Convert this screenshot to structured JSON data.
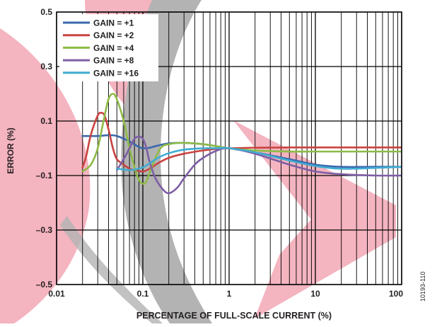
{
  "chart_data": {
    "type": "line",
    "xlabel": "PERCENTAGE OF FULL-SCALE CURRENT (%)",
    "ylabel": "ERROR (%)",
    "x_scale": "log",
    "xlim": [
      0.01,
      100
    ],
    "ylim": [
      -0.5,
      0.5
    ],
    "grid": true,
    "legend_position": "top-left",
    "x_ticks": [
      {
        "value": 0.01,
        "label": "0.01"
      },
      {
        "value": 0.1,
        "label": "0.1"
      },
      {
        "value": 1,
        "label": "1"
      },
      {
        "value": 10,
        "label": "10"
      },
      {
        "value": 100,
        "label": "100"
      }
    ],
    "y_ticks": [
      {
        "value": 0.5,
        "label": "0.5"
      },
      {
        "value": 0.3,
        "label": "0.3"
      },
      {
        "value": 0.1,
        "label": "0.1"
      },
      {
        "value": -0.1,
        "label": "–0.1"
      },
      {
        "value": -0.3,
        "label": "–0.3"
      },
      {
        "value": -0.5,
        "label": "–0.5"
      }
    ],
    "series": [
      {
        "name": "GAIN = +1",
        "color": "#3a67ad",
        "x": [
          0.02,
          0.03,
          0.04,
          0.05,
          0.07,
          0.09,
          0.1,
          0.12,
          0.15,
          0.2,
          0.3,
          0.5,
          0.7,
          1,
          2,
          5,
          10,
          20,
          50,
          100
        ],
        "y": [
          0.045,
          0.045,
          0.048,
          0.045,
          0.025,
          0.005,
          0.0,
          0.002,
          0.01,
          0.018,
          0.02,
          0.015,
          0.008,
          0.0,
          -0.015,
          -0.04,
          -0.06,
          -0.068,
          -0.068,
          -0.068
        ]
      },
      {
        "name": "GAIN = +2",
        "color": "#c94340",
        "x": [
          0.02,
          0.022,
          0.025,
          0.03,
          0.033,
          0.036,
          0.04,
          0.045,
          0.05,
          0.06,
          0.07,
          0.08,
          0.1,
          0.12,
          0.15,
          0.2,
          0.3,
          0.5,
          0.7,
          1,
          2,
          5,
          10,
          100
        ],
        "y": [
          -0.07,
          -0.03,
          0.05,
          0.12,
          0.13,
          0.12,
          0.07,
          0.0,
          -0.04,
          -0.06,
          -0.075,
          -0.08,
          -0.085,
          -0.075,
          -0.055,
          -0.035,
          -0.02,
          -0.008,
          -0.002,
          0.0,
          0.002,
          0.003,
          0.003,
          0.003
        ]
      },
      {
        "name": "GAIN = +4",
        "color": "#8dbb45",
        "x": [
          0.02,
          0.025,
          0.03,
          0.035,
          0.04,
          0.045,
          0.05,
          0.06,
          0.07,
          0.08,
          0.09,
          0.1,
          0.11,
          0.13,
          0.16,
          0.2,
          0.3,
          0.5,
          0.7,
          1,
          2,
          5,
          10,
          100
        ],
        "y": [
          -0.085,
          -0.06,
          0.0,
          0.1,
          0.18,
          0.2,
          0.18,
          0.1,
          0.0,
          -0.07,
          -0.115,
          -0.13,
          -0.12,
          -0.06,
          0.0,
          0.015,
          0.02,
          0.015,
          0.008,
          0.0,
          -0.008,
          -0.012,
          -0.012,
          -0.012
        ]
      },
      {
        "name": "GAIN = +8",
        "color": "#7e5ea5",
        "x": [
          0.05,
          0.06,
          0.07,
          0.08,
          0.09,
          0.1,
          0.11,
          0.12,
          0.14,
          0.17,
          0.2,
          0.25,
          0.3,
          0.4,
          0.5,
          0.7,
          1,
          2,
          5,
          10,
          20,
          50,
          100
        ],
        "y": [
          -0.08,
          -0.04,
          0.0,
          0.035,
          0.043,
          0.035,
          0.0,
          -0.05,
          -0.11,
          -0.15,
          -0.165,
          -0.145,
          -0.11,
          -0.06,
          -0.035,
          -0.01,
          0.0,
          -0.02,
          -0.06,
          -0.085,
          -0.095,
          -0.1,
          -0.1
        ]
      },
      {
        "name": "GAIN = +16",
        "color": "#40acd2",
        "x": [
          0.05,
          0.06,
          0.07,
          0.08,
          0.1,
          0.12,
          0.15,
          0.2,
          0.3,
          0.5,
          0.7,
          1,
          2,
          5,
          10,
          20,
          50,
          100
        ],
        "y": [
          -0.075,
          -0.078,
          -0.08,
          -0.078,
          -0.07,
          -0.055,
          -0.035,
          -0.018,
          -0.005,
          0.0,
          0.0,
          0.0,
          -0.015,
          -0.045,
          -0.065,
          -0.075,
          -0.072,
          -0.068
        ]
      }
    ]
  },
  "figure_id": "10193-110",
  "watermark_colors": {
    "pink": "#f4b4c0",
    "gray": "#b3b3b3"
  }
}
